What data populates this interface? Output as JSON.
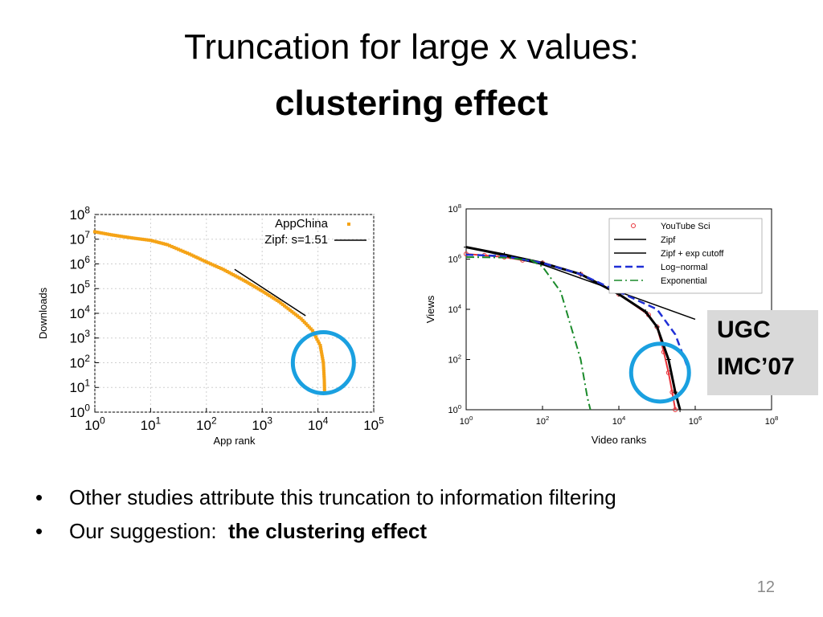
{
  "slide": {
    "title_line1": "Truncation for large x values:",
    "title_line2": "clustering effect",
    "ugc_line1": "UGC",
    "ugc_line2": "IMC’07",
    "bullets": [
      {
        "text": "Other studies attribute this truncation to information filtering"
      },
      {
        "prefix": "Our suggestion:  ",
        "bold": "the clustering effect"
      }
    ],
    "bullet_symbol": "•",
    "page_number": "12"
  },
  "chart_data": [
    {
      "type": "scatter",
      "xlabel": "App rank",
      "ylabel": "Downloads",
      "x_scale": "log",
      "y_scale": "log",
      "xlim": [
        1,
        100000
      ],
      "ylim": [
        1,
        100000000
      ],
      "x_ticks": [
        {
          "base": "10",
          "exp": "0"
        },
        {
          "base": "10",
          "exp": "1"
        },
        {
          "base": "10",
          "exp": "2"
        },
        {
          "base": "10",
          "exp": "3"
        },
        {
          "base": "10",
          "exp": "4"
        },
        {
          "base": "10",
          "exp": "5"
        }
      ],
      "y_ticks": [
        {
          "base": "10",
          "exp": "0"
        },
        {
          "base": "10",
          "exp": "1"
        },
        {
          "base": "10",
          "exp": "2"
        },
        {
          "base": "10",
          "exp": "3"
        },
        {
          "base": "10",
          "exp": "4"
        },
        {
          "base": "10",
          "exp": "5"
        },
        {
          "base": "10",
          "exp": "6"
        },
        {
          "base": "10",
          "exp": "7"
        },
        {
          "base": "10",
          "exp": "8"
        }
      ],
      "legend_position": "top-right",
      "series": [
        {
          "name": "AppChina",
          "style": "points",
          "color": "#f5a316",
          "x": [
            1,
            2,
            3,
            5,
            10,
            20,
            50,
            100,
            200,
            500,
            1000,
            2000,
            5000,
            8000,
            11000,
            12500,
            13000,
            13200
          ],
          "y": [
            20000000,
            15000000,
            13000000,
            11000000,
            9000000,
            6000000,
            2500000,
            1200000,
            600000,
            200000,
            80000,
            30000,
            6000,
            2000,
            500,
            100,
            20,
            5
          ]
        },
        {
          "name": "Zipf: s=1.51",
          "style": "line",
          "color": "#000000",
          "x": [
            320,
            6000
          ],
          "y": [
            600000,
            8000
          ]
        }
      ],
      "highlight": {
        "x": 12500,
        "y": 100,
        "color": "#1aa0e0"
      }
    },
    {
      "type": "line",
      "xlabel": "Video ranks",
      "ylabel": "Views",
      "x_scale": "log",
      "y_scale": "log",
      "xlim": [
        1,
        100000000
      ],
      "ylim": [
        1,
        100000000
      ],
      "x_ticks": [
        {
          "base": "10",
          "exp": "0"
        },
        {
          "base": "10",
          "exp": "2"
        },
        {
          "base": "10",
          "exp": "4"
        },
        {
          "base": "10",
          "exp": "6"
        },
        {
          "base": "10",
          "exp": "8"
        }
      ],
      "y_ticks": [
        {
          "base": "10",
          "exp": "0"
        },
        {
          "base": "10",
          "exp": "2"
        },
        {
          "base": "10",
          "exp": "4"
        },
        {
          "base": "10",
          "exp": "6"
        },
        {
          "base": "10",
          "exp": "8"
        }
      ],
      "legend_position": "top-right",
      "series": [
        {
          "name": "YouTube Sci",
          "style": "circles",
          "color": "#e8333a",
          "x": [
            1,
            3,
            10,
            30,
            100,
            1000,
            10000,
            60000,
            100000,
            150000,
            200000,
            250000,
            300000
          ],
          "y": [
            1600000,
            1400000,
            1200000,
            900000,
            700000,
            250000,
            40000,
            6000,
            2000,
            200,
            30,
            5,
            1
          ]
        },
        {
          "name": "Zipf",
          "style": "solid",
          "color": "#000000",
          "x": [
            1,
            100,
            10000,
            1000000
          ],
          "y": [
            3000000,
            600000,
            50000,
            4000
          ]
        },
        {
          "name": "Zipf + exp cutoff",
          "style": "plus-line",
          "color": "#000000",
          "x": [
            1,
            10,
            100,
            1000,
            10000,
            50000,
            100000,
            200000,
            300000,
            400000
          ],
          "y": [
            3000000,
            1500000,
            700000,
            250000,
            40000,
            8000,
            2000,
            100,
            5,
            1
          ]
        },
        {
          "name": "Log−normal",
          "style": "dashed",
          "color": "#1f2fd6",
          "x": [
            1,
            10,
            100,
            1000,
            10000,
            100000,
            300000,
            600000
          ],
          "y": [
            1500000,
            1300000,
            700000,
            250000,
            50000,
            10000,
            1000,
            60
          ]
        },
        {
          "name": "Exponential",
          "style": "dashdot",
          "color": "#1a8a2a",
          "x": [
            1,
            10,
            50,
            100,
            300,
            1000,
            1500,
            1800
          ],
          "y": [
            1200000,
            1150000,
            900000,
            500000,
            50000,
            100,
            3,
            1
          ]
        }
      ],
      "highlight": {
        "x": 120000,
        "y": 30,
        "color": "#1aa0e0"
      }
    }
  ]
}
